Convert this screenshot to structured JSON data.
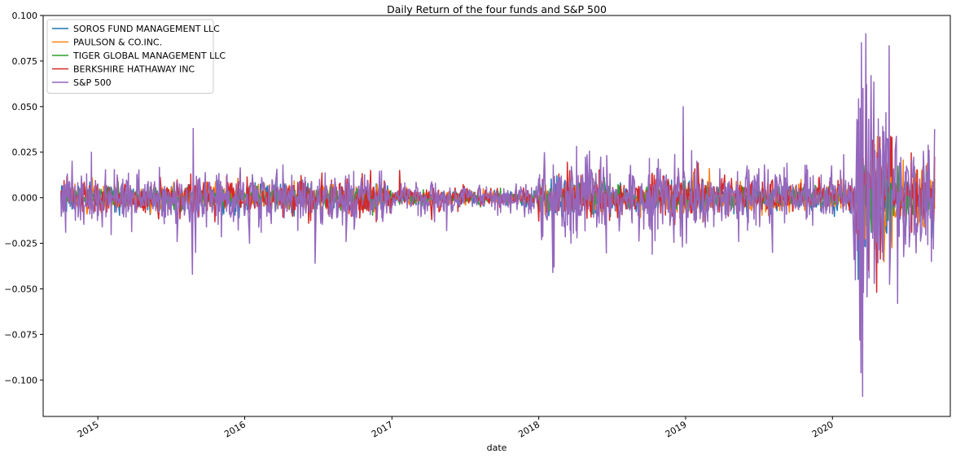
{
  "chart_data": {
    "type": "line",
    "title": "Daily Return of the four funds and S&P 500",
    "xlabel": "date",
    "ylabel": "",
    "x_range": [
      "2014-08-18",
      "2020-10-20"
    ],
    "x_data_range": [
      "2014-10-01",
      "2020-09-11"
    ],
    "ylim": [
      -0.12,
      0.1
    ],
    "y_ticks": [
      -0.1,
      -0.075,
      -0.05,
      -0.025,
      0.0,
      0.025,
      0.05,
      0.075,
      0.1
    ],
    "y_tick_labels": [
      "−0.100",
      "−0.075",
      "−0.050",
      "−0.025",
      "0.000",
      "0.025",
      "0.050",
      "0.075",
      "0.100"
    ],
    "x_ticks": [
      "2015-01-01",
      "2016-01-01",
      "2017-01-01",
      "2018-01-01",
      "2019-01-01",
      "2020-01-01"
    ],
    "x_tick_labels": [
      "2015",
      "2016",
      "2017",
      "2018",
      "2019",
      "2020"
    ],
    "legend_placement": "upper-left",
    "grid": false,
    "series": [
      {
        "name": "SOROS FUND MANAGEMENT LLC",
        "color": "#1f77b4",
        "volatility": 0.0035,
        "events": [
          [
            "2014-10-15",
            -0.0075
          ],
          [
            "2015-08-24",
            -0.02
          ],
          [
            "2016-02-11",
            -0.01
          ],
          [
            "2016-06-24",
            -0.012
          ],
          [
            "2018-02-05",
            -0.015
          ],
          [
            "2020-03-16",
            -0.035
          ],
          [
            "2020-03-24",
            0.03
          ]
        ]
      },
      {
        "name": "PAULSON & CO.INC.",
        "color": "#ff7f0e",
        "volatility": 0.0035,
        "events": [
          [
            "2019-03-01",
            0.016
          ],
          [
            "2019-06-20",
            -0.007
          ],
          [
            "2018-08-20",
            0.006
          ],
          [
            "2019-10-15",
            0.01
          ],
          [
            "2020-03-12",
            -0.03
          ],
          [
            "2020-04-06",
            0.02
          ]
        ]
      },
      {
        "name": "TIGER GLOBAL MANAGEMENT LLC",
        "color": "#2ca02c",
        "volatility": 0.003,
        "events": [
          [
            "2016-06-24",
            -0.015
          ],
          [
            "2018-02-05",
            -0.012
          ],
          [
            "2020-03-16",
            -0.04
          ],
          [
            "2020-03-24",
            0.03
          ]
        ]
      },
      {
        "name": "BERKSHIRE HATHAWAY INC",
        "color": "#d62728",
        "volatility": 0.0045,
        "events": [
          [
            "2016-11-09",
            0.015
          ],
          [
            "2017-01-20",
            0.015
          ],
          [
            "2017-04-10",
            -0.012
          ],
          [
            "2018-02-05",
            -0.025
          ],
          [
            "2020-03-16",
            -0.05
          ],
          [
            "2020-03-24",
            0.05
          ],
          [
            "2020-06-11",
            -0.03
          ]
        ]
      },
      {
        "name": "S&P 500",
        "color": "#9467bd",
        "volatility": 0.0075,
        "events": [
          [
            "2014-10-13",
            -0.019
          ],
          [
            "2014-10-17",
            0.013
          ],
          [
            "2014-10-29",
            0.02
          ],
          [
            "2014-12-16",
            0.025
          ],
          [
            "2015-08-24",
            -0.042
          ],
          [
            "2015-08-26",
            0.038
          ],
          [
            "2015-09-01",
            -0.03
          ],
          [
            "2016-01-13",
            -0.025
          ],
          [
            "2016-02-11",
            -0.019
          ],
          [
            "2016-06-24",
            -0.036
          ],
          [
            "2016-09-09",
            -0.024
          ],
          [
            "2017-05-17",
            -0.018
          ],
          [
            "2018-02-05",
            -0.041
          ],
          [
            "2018-02-08",
            -0.038
          ],
          [
            "2018-02-06",
            0.018
          ],
          [
            "2018-03-22",
            -0.025
          ],
          [
            "2018-04-06",
            -0.022
          ],
          [
            "2018-10-10",
            -0.031
          ],
          [
            "2018-12-24",
            -0.027
          ],
          [
            "2018-12-26",
            0.05
          ],
          [
            "2019-01-03",
            -0.025
          ],
          [
            "2019-05-13",
            -0.024
          ],
          [
            "2019-08-05",
            -0.03
          ],
          [
            "2020-02-24",
            -0.034
          ],
          [
            "2020-02-27",
            -0.045
          ],
          [
            "2020-03-02",
            0.043
          ],
          [
            "2020-03-03",
            -0.029
          ],
          [
            "2020-03-04",
            0.042
          ],
          [
            "2020-03-09",
            -0.078
          ],
          [
            "2020-03-10",
            0.049
          ],
          [
            "2020-03-11",
            -0.049
          ],
          [
            "2020-03-12",
            -0.096
          ],
          [
            "2020-03-13",
            0.085
          ],
          [
            "2020-03-16",
            -0.109
          ],
          [
            "2020-03-17",
            0.06
          ],
          [
            "2020-03-18",
            -0.052
          ],
          [
            "2020-03-24",
            0.09
          ],
          [
            "2020-03-26",
            0.062
          ],
          [
            "2020-04-01",
            -0.044
          ],
          [
            "2020-04-06",
            0.067
          ],
          [
            "2020-04-29",
            0.027
          ],
          [
            "2020-05-18",
            0.032
          ],
          [
            "2020-06-05",
            0.026
          ],
          [
            "2020-06-11",
            -0.058
          ],
          [
            "2020-06-16",
            0.019
          ],
          [
            "2020-09-03",
            -0.035
          ],
          [
            "2020-09-08",
            -0.028
          ]
        ]
      }
    ]
  }
}
